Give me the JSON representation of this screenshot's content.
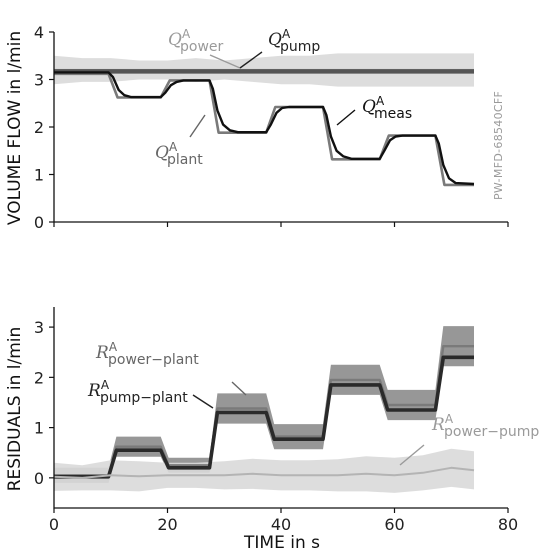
{
  "watermark": "PW-MFD-68540CFF",
  "xlabel": "TIME in s",
  "xticks": [
    0,
    20,
    40,
    60,
    80
  ],
  "colors": {
    "dark": "#111111",
    "mid": "#6e6e6e",
    "light": "#b4b4b4",
    "band_dark": "#8c8c8c",
    "band_light": "#d9d9d9"
  },
  "chart_data": [
    {
      "type": "line",
      "ylabel": "VOLUME FLOW in l/min",
      "xlim": [
        0,
        80
      ],
      "ylim": [
        0,
        4
      ],
      "yticks": [
        0,
        1,
        2,
        3,
        4
      ],
      "series": [
        {
          "name": "Q^A_power",
          "label_main": "Q",
          "label_sup": "A",
          "label_sub": "power",
          "x": [
            0,
            5,
            10,
            15,
            20,
            25,
            30,
            35,
            40,
            45,
            50,
            55,
            60,
            65,
            70,
            74
          ],
          "y": [
            3.2,
            3.2,
            3.2,
            3.2,
            3.2,
            3.2,
            3.2,
            3.2,
            3.2,
            3.2,
            3.2,
            3.2,
            3.2,
            3.2,
            3.2,
            3.2
          ],
          "band": [
            0.3,
            0.25,
            0.25,
            0.2,
            0.2,
            0.25,
            0.2,
            0.25,
            0.3,
            0.3,
            0.35,
            0.35,
            0.35,
            0.35,
            0.35,
            0.35
          ]
        },
        {
          "name": "Q^A_pump",
          "label_main": "Q",
          "label_sup": "A",
          "label_sub": "pump",
          "x": [
            0,
            74
          ],
          "y": [
            3.17,
            3.17
          ]
        },
        {
          "name": "Q^A_plant",
          "label_main": "Q",
          "label_sup": "A",
          "label_sub": "plant",
          "x": [
            0,
            9.6,
            11.2,
            18.8,
            20.4,
            27.4,
            29.0,
            37.4,
            39.0,
            47.4,
            49.0,
            57.4,
            59.0,
            67.2,
            68.8,
            74
          ],
          "y": [
            3.12,
            3.12,
            2.62,
            2.62,
            2.98,
            2.98,
            1.88,
            1.88,
            2.42,
            2.42,
            1.32,
            1.32,
            1.82,
            1.82,
            0.78,
            0.78
          ]
        },
        {
          "name": "Q^A_meas",
          "label_main": "Q",
          "label_sup": "A",
          "label_sub": "meas",
          "x": [
            0,
            9.6,
            10.4,
            11.4,
            12.4,
            13.6,
            18.8,
            19.6,
            20.6,
            21.6,
            22.8,
            27.4,
            28.0,
            28.8,
            29.8,
            31.0,
            32.4,
            37.4,
            38.2,
            39.2,
            40.2,
            41.4,
            47.4,
            48.0,
            48.8,
            49.8,
            51.0,
            52.4,
            57.4,
            58.2,
            59.2,
            60.2,
            61.4,
            67.2,
            67.8,
            68.6,
            69.6,
            70.8,
            74
          ],
          "y": [
            3.15,
            3.15,
            3.05,
            2.78,
            2.67,
            2.63,
            2.63,
            2.72,
            2.88,
            2.95,
            2.98,
            2.98,
            2.8,
            2.35,
            2.05,
            1.93,
            1.89,
            1.89,
            2.05,
            2.3,
            2.4,
            2.42,
            2.42,
            2.25,
            1.8,
            1.5,
            1.38,
            1.33,
            1.33,
            1.5,
            1.72,
            1.8,
            1.82,
            1.82,
            1.65,
            1.2,
            0.92,
            0.82,
            0.8
          ]
        }
      ]
    },
    {
      "type": "line",
      "ylabel": "RESIDUALS in l/min",
      "xlim": [
        0,
        80
      ],
      "ylim": [
        -0.6,
        3.4
      ],
      "yticks": [
        0,
        1,
        2,
        3
      ],
      "series": [
        {
          "name": "R^A_power-plant",
          "label_main": "R",
          "label_sup": "A",
          "label_sub": "power−plant",
          "x": [
            0,
            9.6,
            11.0,
            18.8,
            20.2,
            27.4,
            28.8,
            37.4,
            38.8,
            47.4,
            48.8,
            57.4,
            58.8,
            67.2,
            68.6,
            74
          ],
          "y": [
            0.05,
            0.05,
            0.62,
            0.62,
            0.25,
            0.25,
            1.38,
            1.38,
            0.82,
            0.82,
            1.95,
            1.95,
            1.45,
            1.45,
            2.62,
            2.62
          ],
          "band": [
            0.15,
            0.15,
            0.2,
            0.2,
            0.15,
            0.15,
            0.3,
            0.3,
            0.25,
            0.25,
            0.3,
            0.3,
            0.3,
            0.3,
            0.4,
            0.4
          ]
        },
        {
          "name": "R^A_pump-plant",
          "label_main": "R",
          "label_sup": "A",
          "label_sub": "pump−plant",
          "x": [
            0,
            9.6,
            11.0,
            18.8,
            20.2,
            27.4,
            28.8,
            37.4,
            38.8,
            47.4,
            48.8,
            57.4,
            58.8,
            67.2,
            68.6,
            74
          ],
          "y": [
            0.02,
            0.02,
            0.55,
            0.55,
            0.2,
            0.2,
            1.3,
            1.3,
            0.77,
            0.77,
            1.85,
            1.85,
            1.35,
            1.35,
            2.4,
            2.4
          ]
        },
        {
          "name": "R^A_power-pump",
          "label_main": "R",
          "label_sup": "A",
          "label_sub": "power−pump",
          "x": [
            0,
            5,
            10,
            15,
            20,
            25,
            30,
            35,
            40,
            45,
            50,
            55,
            60,
            65,
            70,
            74
          ],
          "y": [
            0.02,
            0.0,
            0.05,
            0.03,
            0.05,
            0.05,
            0.05,
            0.08,
            0.05,
            0.05,
            0.05,
            0.08,
            0.05,
            0.1,
            0.2,
            0.15
          ],
          "band": [
            0.28,
            0.25,
            0.3,
            0.3,
            0.25,
            0.25,
            0.28,
            0.3,
            0.3,
            0.3,
            0.32,
            0.35,
            0.35,
            0.35,
            0.38,
            0.38
          ]
        }
      ]
    }
  ]
}
